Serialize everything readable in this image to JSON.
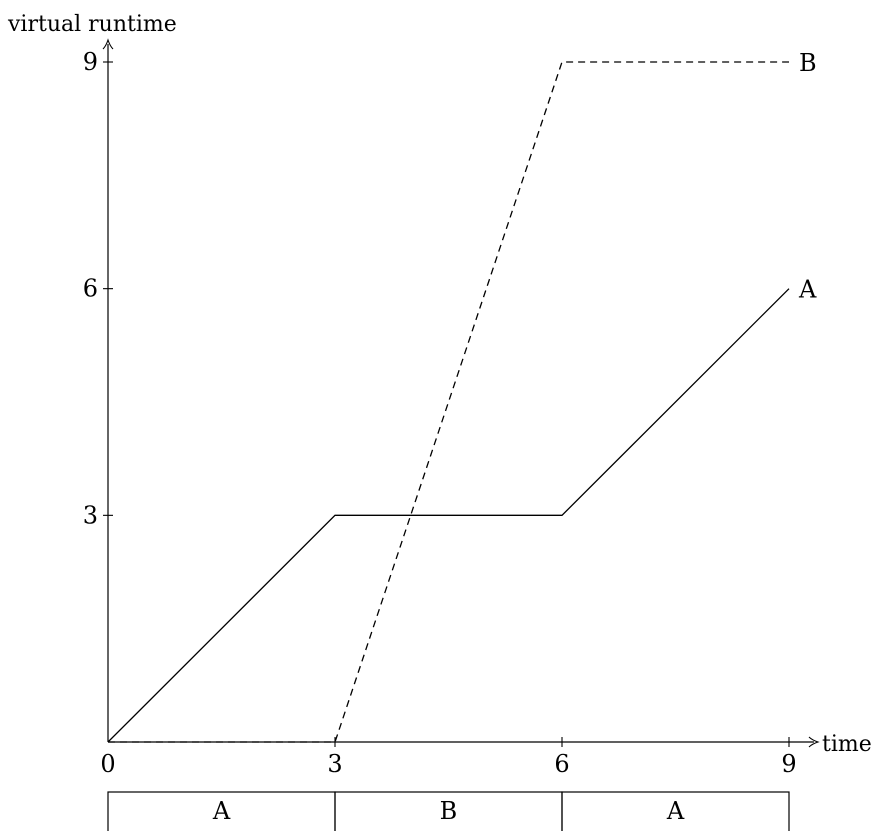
{
  "chart_data": {
    "type": "line",
    "title": "",
    "xlabel": "time",
    "ylabel": "virtual runtime",
    "xlim": [
      0,
      9
    ],
    "ylim": [
      0,
      9
    ],
    "x_ticks": [
      "0",
      "3",
      "6",
      "9"
    ],
    "y_ticks": [
      "3",
      "6",
      "9"
    ],
    "grid": false,
    "series": [
      {
        "name": "A",
        "style": "solid",
        "color": "#000000",
        "x": [
          0,
          3,
          6,
          9
        ],
        "y": [
          0,
          3,
          3,
          6
        ]
      },
      {
        "name": "B",
        "style": "dashed",
        "color": "#000000",
        "x": [
          0,
          3,
          6,
          9
        ],
        "y": [
          0,
          0,
          9,
          9
        ]
      }
    ],
    "schedule": [
      {
        "label": "A",
        "start": 0,
        "end": 3
      },
      {
        "label": "B",
        "start": 3,
        "end": 6
      },
      {
        "label": "A",
        "start": 6,
        "end": 9
      }
    ]
  }
}
